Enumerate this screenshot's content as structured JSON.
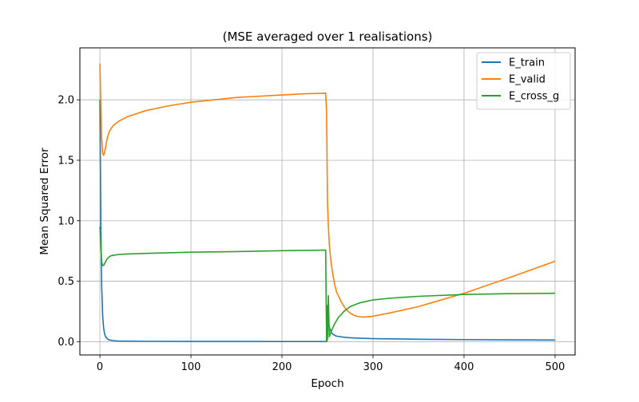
{
  "chart_data": {
    "type": "line",
    "title": "(MSE averaged over 1 realisations)",
    "xlabel": "Epoch",
    "ylabel": "Mean Squared Error",
    "xlim": [
      -22,
      522
    ],
    "ylim": [
      -0.11,
      2.43
    ],
    "xticks": [
      0,
      100,
      200,
      300,
      400,
      500
    ],
    "xtick_labels": [
      "0",
      "100",
      "200",
      "300",
      "400",
      "500"
    ],
    "yticks": [
      0.0,
      0.5,
      1.0,
      1.5,
      2.0
    ],
    "ytick_labels": [
      "0.0",
      "0.5",
      "1.0",
      "1.5",
      "2.0"
    ],
    "grid": true,
    "legend_position": "top-right",
    "series": [
      {
        "name": "E_train",
        "color": "#1f77b4",
        "x": [
          0,
          1,
          2,
          3,
          4,
          5,
          6,
          8,
          10,
          15,
          20,
          30,
          50,
          100,
          150,
          200,
          248,
          249,
          250,
          251,
          252,
          254,
          256,
          260,
          270,
          280,
          300,
          350,
          400,
          450,
          500
        ],
        "y": [
          2.0,
          1.0,
          0.45,
          0.22,
          0.12,
          0.07,
          0.045,
          0.025,
          0.015,
          0.008,
          0.005,
          0.004,
          0.003,
          0.002,
          0.002,
          0.001,
          0.001,
          0.001,
          0.3,
          0.17,
          0.12,
          0.08,
          0.06,
          0.045,
          0.035,
          0.03,
          0.025,
          0.02,
          0.017,
          0.015,
          0.013
        ]
      },
      {
        "name": "E_valid",
        "color": "#ff7f0e",
        "x": [
          0,
          1,
          2,
          3,
          4,
          5,
          6,
          7,
          8,
          10,
          12,
          15,
          20,
          30,
          50,
          75,
          100,
          125,
          150,
          175,
          200,
          225,
          248,
          249,
          250,
          251,
          252,
          254,
          256,
          258,
          260,
          265,
          270,
          275,
          280,
          285,
          290,
          300,
          320,
          350,
          400,
          450,
          500
        ],
        "y": [
          2.3,
          1.95,
          1.68,
          1.56,
          1.54,
          1.56,
          1.6,
          1.64,
          1.68,
          1.73,
          1.76,
          1.79,
          1.82,
          1.86,
          1.91,
          1.95,
          1.98,
          2.0,
          2.02,
          2.03,
          2.04,
          2.05,
          2.055,
          1.9,
          1.15,
          0.95,
          0.8,
          0.65,
          0.55,
          0.47,
          0.41,
          0.33,
          0.27,
          0.235,
          0.215,
          0.205,
          0.203,
          0.21,
          0.24,
          0.29,
          0.4,
          0.53,
          0.665
        ]
      },
      {
        "name": "E_cross_g",
        "color": "#2ca02c",
        "x": [
          0,
          1,
          2,
          3,
          4,
          5,
          6,
          8,
          10,
          12,
          15,
          20,
          30,
          50,
          100,
          150,
          200,
          248,
          249,
          250,
          251,
          252,
          253,
          255,
          258,
          262,
          268,
          275,
          285,
          300,
          320,
          350,
          400,
          450,
          500
        ],
        "y": [
          0.95,
          0.8,
          0.66,
          0.63,
          0.63,
          0.64,
          0.66,
          0.685,
          0.7,
          0.71,
          0.715,
          0.72,
          0.725,
          0.73,
          0.74,
          0.745,
          0.752,
          0.757,
          0.0,
          0.02,
          0.38,
          0.04,
          0.06,
          0.1,
          0.15,
          0.2,
          0.25,
          0.29,
          0.32,
          0.345,
          0.36,
          0.375,
          0.39,
          0.397,
          0.4
        ]
      }
    ]
  }
}
